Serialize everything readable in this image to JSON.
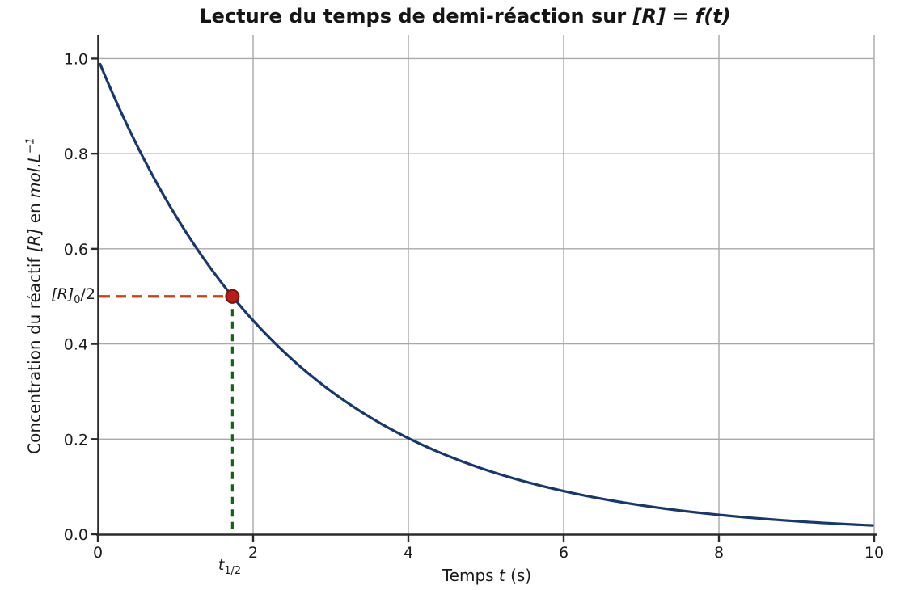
{
  "figure": {
    "title": {
      "prefix": "Lecture du temps de demi-réaction sur ",
      "math": "[R] = f(t)"
    },
    "xlabel": {
      "prefix": "Temps ",
      "math": "t",
      "suffix": " (s)"
    },
    "ylabel": {
      "prefix": "Concentration du réactif ",
      "mathR": "[R]",
      "mid": " en ",
      "unit": "mol.L",
      "exponent": "−1"
    },
    "annotations": {
      "half_conc": {
        "base": "[R]",
        "sub": "0",
        "rest": "/2"
      },
      "t_half": {
        "base": "t",
        "sub": "1/2"
      }
    },
    "colors": {
      "curve": "#16386e",
      "half_line": "#c84018",
      "t_half_line": "#146414",
      "marker_fill": "#b81e16",
      "marker_edge": "#7e100a",
      "grid": "#a9a9a9",
      "spine": "#2b2b2b",
      "text": "#1a1a1a"
    }
  },
  "chart_data": {
    "type": "line",
    "title": "Lecture du temps de demi-réaction sur [R] = f(t)",
    "xlabel": "Temps t (s)",
    "ylabel": "Concentration du réactif [R] en mol.L⁻¹",
    "xlim": [
      0,
      10
    ],
    "ylim": [
      0,
      1.05
    ],
    "x_ticks": [
      0,
      2,
      4,
      6,
      8,
      10
    ],
    "x_tick_labels": [
      "0",
      "2",
      "4",
      "6",
      "8",
      "10"
    ],
    "y_ticks": [
      0.0,
      0.2,
      0.4,
      0.6,
      0.8,
      1.0
    ],
    "y_tick_labels": [
      "0.0",
      "0.2",
      "0.4",
      "0.6",
      "0.8",
      "1.0"
    ],
    "grid": true,
    "legend": "none",
    "model": {
      "type": "exponential_decay",
      "R0": 1.0,
      "k": 0.4,
      "t_half": 1.733,
      "half_concentration": 0.5
    },
    "series": [
      {
        "name": "[R](t)",
        "x": [
          0,
          0.5,
          1,
          1.5,
          2,
          2.5,
          3,
          3.5,
          4,
          4.5,
          5,
          5.5,
          6,
          6.5,
          7,
          7.5,
          8,
          8.5,
          9,
          9.5,
          10
        ],
        "y": [
          1.0,
          0.819,
          0.67,
          0.549,
          0.449,
          0.368,
          0.301,
          0.247,
          0.202,
          0.165,
          0.135,
          0.111,
          0.091,
          0.074,
          0.061,
          0.05,
          0.041,
          0.033,
          0.027,
          0.022,
          0.018
        ]
      }
    ],
    "marker_point": {
      "t": 1.733,
      "R": 0.5
    },
    "guide_lines": {
      "horizontal": {
        "y": 0.5,
        "from_x": 0,
        "to_x": 1.733,
        "style": "dashed"
      },
      "vertical": {
        "x": 1.733,
        "from_y": 0,
        "to_y": 0.5,
        "style": "dashed"
      }
    }
  }
}
